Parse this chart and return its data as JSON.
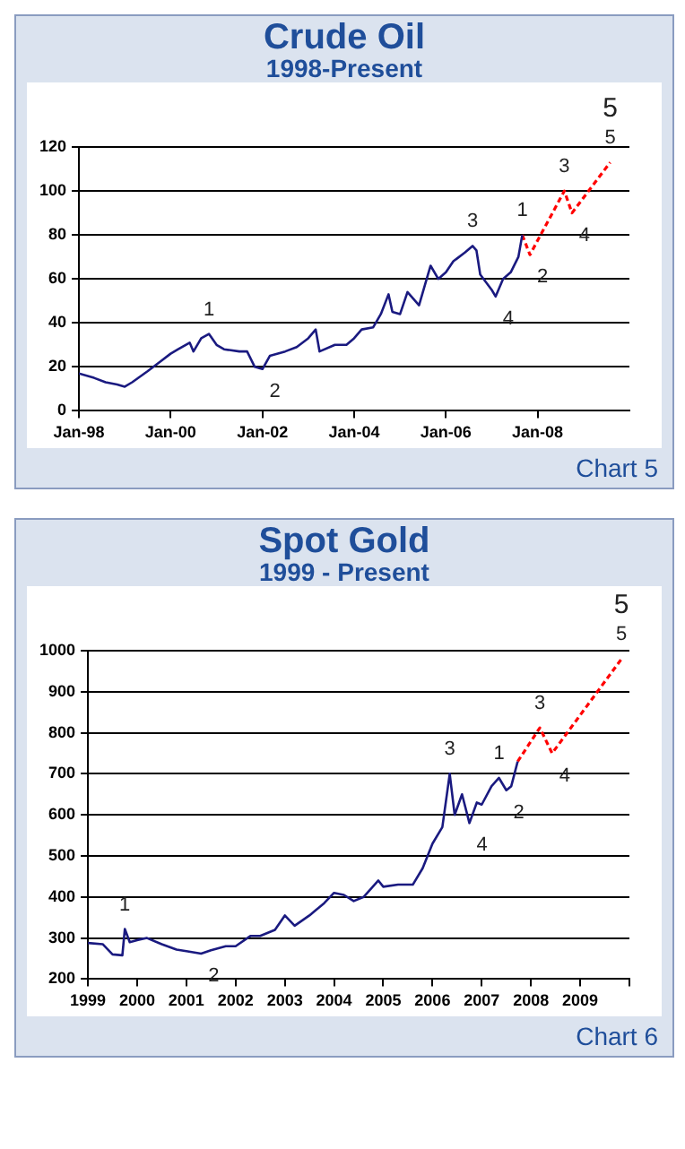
{
  "chart_data": [
    {
      "type": "line",
      "title": "Crude Oil",
      "subtitle": "1998-Present",
      "xlim": [
        "1998-01",
        "2010-01"
      ],
      "xticks": [
        {
          "value": "1998-01",
          "label": "Jan-98"
        },
        {
          "value": "2000-01",
          "label": "Jan-00"
        },
        {
          "value": "2002-01",
          "label": "Jan-02"
        },
        {
          "value": "2004-01",
          "label": "Jan-04"
        },
        {
          "value": "2006-01",
          "label": "Jan-06"
        },
        {
          "value": "2008-01",
          "label": "Jan-08"
        }
      ],
      "ylim": [
        0,
        120
      ],
      "yticks": [
        0,
        20,
        40,
        60,
        80,
        100,
        120
      ],
      "grid": "y",
      "marker": "none",
      "series": [
        {
          "color": "#1a1a80",
          "line_style": "solid",
          "x": [
            "1998-01",
            "1998-05",
            "1998-08",
            "1998-11",
            "1999-01",
            "1999-03",
            "1999-07",
            "1999-10",
            "2000-01",
            "2000-03",
            "2000-06",
            "2000-07",
            "2000-09",
            "2000-11",
            "2001-01",
            "2001-03",
            "2001-07",
            "2001-09",
            "2001-11",
            "2002-01",
            "2002-03",
            "2002-07",
            "2002-10",
            "2003-01",
            "2003-03",
            "2003-04",
            "2003-08",
            "2003-11",
            "2004-01",
            "2004-03",
            "2004-06",
            "2004-08",
            "2004-10",
            "2004-11",
            "2005-01",
            "2005-03",
            "2005-06",
            "2005-08",
            "2005-09",
            "2005-11",
            "2006-01",
            "2006-03",
            "2006-06",
            "2006-08",
            "2006-09",
            "2006-10",
            "2007-01",
            "2007-02",
            "2007-04",
            "2007-06",
            "2007-08",
            "2007-09"
          ],
          "values": [
            17,
            15,
            13,
            12,
            11,
            13,
            18,
            22,
            26,
            28,
            31,
            27,
            33,
            35,
            30,
            28,
            27,
            27,
            20,
            19,
            25,
            27,
            29,
            33,
            37,
            27,
            30,
            30,
            33,
            37,
            38,
            44,
            53,
            45,
            44,
            54,
            48,
            60,
            66,
            60,
            63,
            68,
            72,
            75,
            73,
            62,
            55,
            52,
            60,
            63,
            70,
            80
          ]
        },
        {
          "color": "#ff0000",
          "line_style": "dashed",
          "x": [
            "2007-09",
            "2007-11",
            "2008-08",
            "2008-10",
            "2009-08"
          ],
          "values": [
            80,
            71,
            100,
            90,
            113
          ]
        }
      ],
      "annotations": [
        {
          "text": "1",
          "x": "2000-11",
          "y": 35
        },
        {
          "text": "2",
          "x": "2002-01",
          "y": 19
        },
        {
          "text": "3",
          "x": "2006-08",
          "y": 75
        },
        {
          "text": "4",
          "x": "2007-02",
          "y": 52
        },
        {
          "text": "1",
          "x": "2007-09",
          "y": 80
        },
        {
          "text": "2",
          "x": "2007-11",
          "y": 71
        },
        {
          "text": "3",
          "x": "2008-08",
          "y": 100
        },
        {
          "text": "4",
          "x": "2008-10",
          "y": 90
        },
        {
          "text": "5",
          "x": "2009-08",
          "y": 113
        },
        {
          "text": "5",
          "x": "2009-08",
          "y": 113
        },
        "Chart 5"
      ]
    },
    {
      "type": "line",
      "title": "Spot Gold",
      "subtitle": "1999 - Present",
      "xlim": [
        1999,
        2010
      ],
      "xticks": [
        1999,
        2000,
        2001,
        2002,
        2003,
        2004,
        2005,
        2006,
        2007,
        2008,
        2009,
        {
          "value": 2010,
          "label": null
        }
      ],
      "ylim": [
        200,
        1000
      ],
      "yticks": [
        200,
        300,
        400,
        500,
        600,
        700,
        800,
        900,
        1000
      ],
      "grid": "y",
      "marker": "none",
      "series": [
        {
          "color": "#1a1a80",
          "line_style": "solid",
          "x": [
            1999.0,
            1999.3,
            1999.5,
            1999.7,
            1999.75,
            1999.85,
            2000.0,
            2000.2,
            2000.5,
            2000.8,
            2001.0,
            2001.3,
            2001.5,
            2001.8,
            2002.0,
            2002.3,
            2002.5,
            2002.8,
            2003.0,
            2003.2,
            2003.5,
            2003.8,
            2004.0,
            2004.2,
            2004.4,
            2004.6,
            2004.9,
            2005.0,
            2005.3,
            2005.6,
            2005.8,
            2006.0,
            2006.2,
            2006.35,
            2006.45,
            2006.6,
            2006.75,
            2006.9,
            2007.0,
            2007.2,
            2007.35,
            2007.5,
            2007.6,
            2007.73
          ],
          "values": [
            288,
            285,
            260,
            258,
            322,
            290,
            295,
            300,
            285,
            272,
            268,
            262,
            270,
            280,
            280,
            305,
            305,
            320,
            355,
            330,
            355,
            385,
            410,
            405,
            390,
            400,
            440,
            425,
            430,
            430,
            470,
            530,
            570,
            700,
            600,
            650,
            580,
            630,
            625,
            670,
            690,
            660,
            670,
            730
          ]
        },
        {
          "color": "#ff0000",
          "line_style": "dashed",
          "x": [
            2007.73,
            2008.18,
            2008.43,
            2009.84
          ],
          "values": [
            730,
            812,
            750,
            980
          ]
        }
      ],
      "annotations": [
        {
          "text": "1",
          "x": 1999.75,
          "y": 322
        },
        {
          "text": "2",
          "x": 2001.3,
          "y": 262
        },
        {
          "text": "3",
          "x": 2006.35,
          "y": 700
        },
        {
          "text": "4",
          "x": 2006.75,
          "y": 580
        },
        {
          "text": "1",
          "x": 2007.35,
          "y": 690
        },
        {
          "text": "2",
          "x": 2007.5,
          "y": 660
        },
        {
          "text": "3",
          "x": 2008.18,
          "y": 812
        },
        {
          "text": "4",
          "x": 2008.43,
          "y": 750
        },
        {
          "text": "5",
          "x": 2009.84,
          "y": 980
        },
        {
          "text": "5",
          "x": 2009.84,
          "y": 980
        },
        "Chart 6"
      ]
    }
  ]
}
